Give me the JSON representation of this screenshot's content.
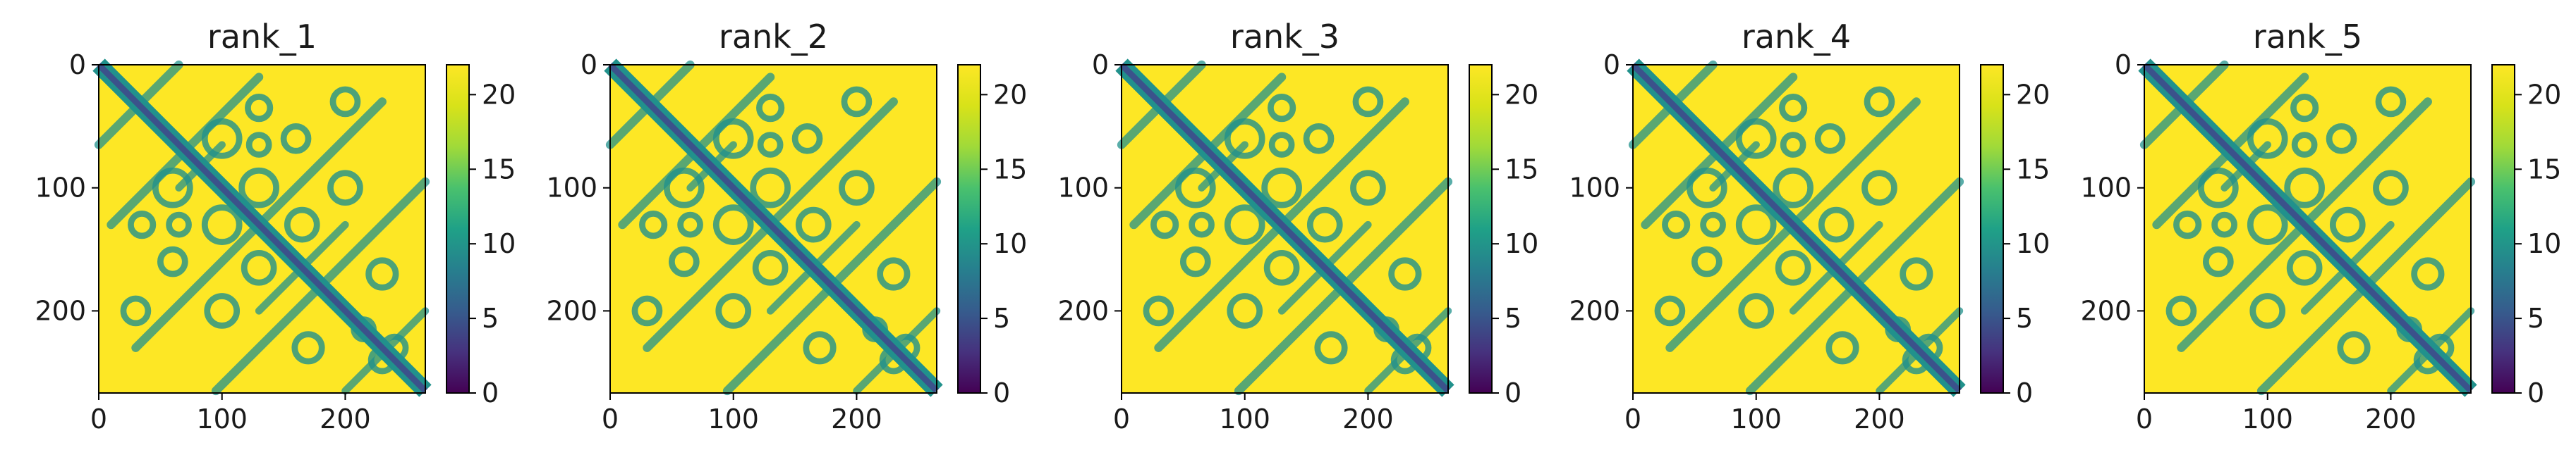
{
  "chart_data": [
    {
      "type": "heatmap",
      "title": "rank_1",
      "x_ticks": [
        0,
        100,
        200
      ],
      "y_ticks": [
        0,
        100,
        200
      ],
      "colorbar": {
        "ticks": [
          0,
          5,
          10,
          15,
          20
        ],
        "range": [
          0,
          22
        ],
        "colormap": "viridis"
      },
      "grid": false
    },
    {
      "type": "heatmap",
      "title": "rank_2",
      "x_ticks": [
        0,
        100,
        200
      ],
      "y_ticks": [
        0,
        100,
        200
      ],
      "colorbar": {
        "ticks": [
          0,
          5,
          10,
          15,
          20
        ],
        "range": [
          0,
          22
        ],
        "colormap": "viridis"
      },
      "grid": false
    },
    {
      "type": "heatmap",
      "title": "rank_3",
      "x_ticks": [
        0,
        100,
        200
      ],
      "y_ticks": [
        0,
        100,
        200
      ],
      "colorbar": {
        "ticks": [
          0,
          5,
          10,
          15,
          20
        ],
        "range": [
          0,
          22
        ],
        "colormap": "viridis"
      },
      "grid": false
    },
    {
      "type": "heatmap",
      "title": "rank_4",
      "x_ticks": [
        0,
        100,
        200
      ],
      "y_ticks": [
        0,
        100,
        200
      ],
      "colorbar": {
        "ticks": [
          0,
          5,
          10,
          15,
          20
        ],
        "range": [
          0,
          22
        ],
        "colormap": "viridis"
      },
      "grid": false
    },
    {
      "type": "heatmap",
      "title": "rank_5",
      "x_ticks": [
        0,
        100,
        200
      ],
      "y_ticks": [
        0,
        100,
        200
      ],
      "colorbar": {
        "ticks": [
          0,
          5,
          10,
          15,
          20
        ],
        "range": [
          0,
          22
        ],
        "colormap": "viridis"
      },
      "grid": false
    }
  ],
  "matrix_size": 265,
  "colors": {
    "high": "#fde725",
    "mid": "#21918c",
    "low": "#440154",
    "diagonal": "#3b528b",
    "frame": "#000000"
  }
}
